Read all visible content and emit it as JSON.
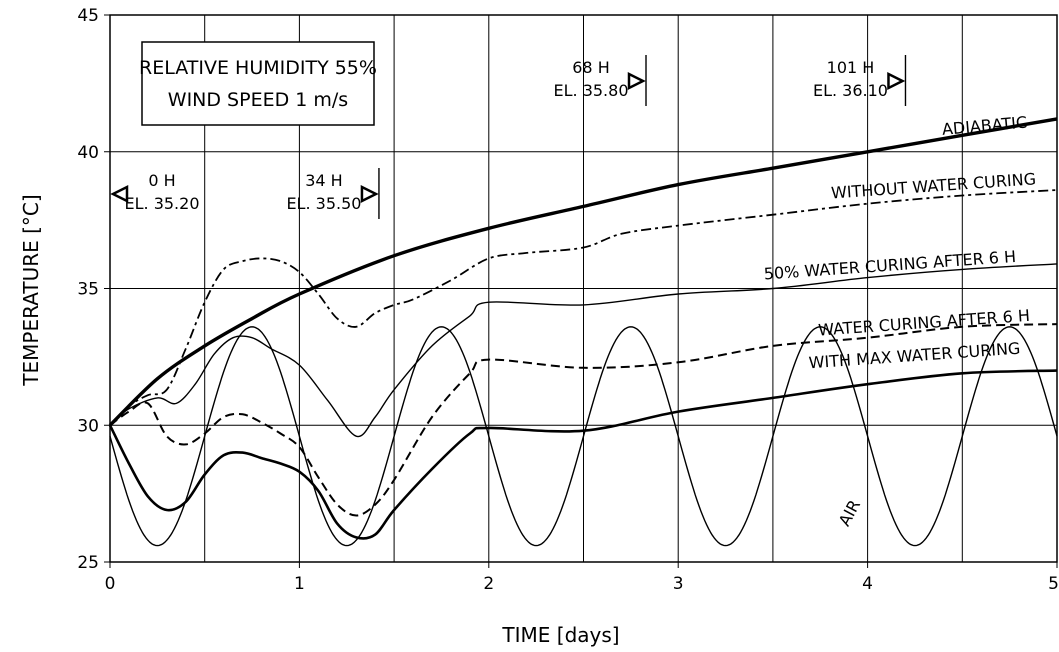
{
  "chart_data": {
    "type": "line",
    "xlabel": "TIME [days]",
    "ylabel": "TEMPERATURE [°C]",
    "xlim": [
      0,
      5
    ],
    "ylim": [
      25,
      45
    ],
    "x_ticks": [
      "0",
      "1",
      "2",
      "3",
      "4",
      "5"
    ],
    "y_ticks": [
      "25",
      "30",
      "35",
      "40",
      "45"
    ],
    "grid": true,
    "info_box": [
      "RELATIVE HUMIDITY 55%",
      "WIND SPEED 1 m/s"
    ],
    "series": [
      {
        "name": "ADIABATIC",
        "style": "thick-solid",
        "x": [
          0,
          0.25,
          0.5,
          0.75,
          1,
          1.5,
          2,
          2.5,
          3,
          3.5,
          4,
          4.5,
          5
        ],
        "y": [
          30,
          31.7,
          32.9,
          33.9,
          34.8,
          36.2,
          37.2,
          38.0,
          38.8,
          39.4,
          40.0,
          40.6,
          41.2
        ]
      },
      {
        "name": "WITHOUT WATER CURING",
        "style": "dash-dot",
        "x": [
          0,
          0.1,
          0.2,
          0.3,
          0.4,
          0.5,
          0.6,
          0.7,
          0.8,
          0.9,
          1.0,
          1.1,
          1.2,
          1.3,
          1.4,
          1.5,
          1.6,
          1.8,
          2.0,
          2.2,
          2.5,
          2.7,
          3.0,
          3.5,
          4.0,
          4.5,
          5.0
        ],
        "y": [
          30,
          30.7,
          31.1,
          31.3,
          32.8,
          34.5,
          35.7,
          36.0,
          36.1,
          36.0,
          35.6,
          34.8,
          33.9,
          33.6,
          34.1,
          34.4,
          34.6,
          35.3,
          36.1,
          36.3,
          36.5,
          37.0,
          37.3,
          37.7,
          38.1,
          38.4,
          38.6
        ]
      },
      {
        "name": "50% WATER CURING AFTER 6 H",
        "style": "thin-solid",
        "x": [
          0,
          0.1,
          0.25,
          0.35,
          0.45,
          0.55,
          0.65,
          0.75,
          0.85,
          1.0,
          1.15,
          1.3,
          1.4,
          1.5,
          1.7,
          1.9,
          2.0,
          2.5,
          3.0,
          3.5,
          4.0,
          4.5,
          5.0
        ],
        "y": [
          30,
          30.6,
          31.0,
          30.8,
          31.5,
          32.6,
          33.2,
          33.2,
          32.8,
          32.2,
          30.9,
          29.6,
          30.3,
          31.3,
          32.9,
          34.0,
          34.5,
          34.4,
          34.8,
          35.0,
          35.4,
          35.7,
          35.9
        ]
      },
      {
        "name": "WATER CURING AFTER 6 H",
        "style": "dashed",
        "x": [
          0,
          0.1,
          0.2,
          0.3,
          0.4,
          0.5,
          0.6,
          0.7,
          0.8,
          0.9,
          1.0,
          1.1,
          1.2,
          1.3,
          1.4,
          1.5,
          1.7,
          1.9,
          2.0,
          2.5,
          3.0,
          3.5,
          4.0,
          4.5,
          5.0
        ],
        "y": [
          30,
          30.5,
          30.8,
          29.6,
          29.3,
          29.7,
          30.3,
          30.4,
          30.1,
          29.7,
          29.2,
          28.1,
          27.1,
          26.7,
          27.1,
          28.0,
          30.3,
          31.9,
          32.4,
          32.1,
          32.3,
          32.9,
          33.2,
          33.6,
          33.7
        ]
      },
      {
        "name": "WITH MAX WATER CURING",
        "style": "medium-solid",
        "x": [
          0,
          0.1,
          0.2,
          0.3,
          0.4,
          0.5,
          0.6,
          0.7,
          0.8,
          0.9,
          1.0,
          1.1,
          1.2,
          1.3,
          1.4,
          1.5,
          1.7,
          1.9,
          2.0,
          2.5,
          3.0,
          3.5,
          4.0,
          4.5,
          5.0
        ],
        "y": [
          30,
          28.6,
          27.4,
          26.9,
          27.2,
          28.2,
          28.9,
          29.0,
          28.8,
          28.6,
          28.3,
          27.6,
          26.4,
          25.9,
          26.0,
          26.9,
          28.4,
          29.7,
          29.9,
          29.8,
          30.5,
          31.0,
          31.5,
          31.9,
          32.0
        ]
      },
      {
        "name": "AIR",
        "style": "thin-solid-sine",
        "x": [
          0,
          0.25,
          0.75,
          1.25,
          1.75,
          2.25,
          2.75,
          3.25,
          3.75,
          4.25,
          4.75,
          5.0
        ],
        "y": [
          30,
          25.6,
          33.6,
          25.6,
          33.6,
          25.6,
          33.6,
          25.6,
          33.6,
          25.6,
          33.6,
          29.6
        ],
        "period_days": 1,
        "mean": 29.6,
        "amplitude": 4.0
      }
    ],
    "series_labels": [
      {
        "text": "ADIABATIC",
        "x": 4.62,
        "y": 40.75,
        "angle": -5
      },
      {
        "text": "WITHOUT WATER CURING",
        "x": 4.35,
        "y": 38.55,
        "angle": -4
      },
      {
        "text": "50% WATER CURING AFTER 6 H",
        "x": 4.12,
        "y": 35.65,
        "angle": -4
      },
      {
        "text": "WATER CURING AFTER 6 H",
        "x": 4.3,
        "y": 33.55,
        "angle": -4
      },
      {
        "text": "WITH MAX WATER CURING",
        "x": 4.25,
        "y": 32.35,
        "angle": -4
      },
      {
        "text": "AIR",
        "x": 3.93,
        "y": 26.7,
        "angle": -62
      }
    ],
    "lift_annotations": [
      {
        "time_label": "0 H",
        "elevation_label": "EL. 35.20",
        "x": 0.0,
        "marker": "left"
      },
      {
        "time_label": "34 H",
        "elevation_label": "EL. 35.50",
        "x": 1.42,
        "marker": "right"
      },
      {
        "time_label": "68 H",
        "elevation_label": "EL. 35.80",
        "x": 2.83,
        "marker": "right"
      },
      {
        "time_label": "101 H",
        "elevation_label": "EL. 36.10",
        "x": 4.2,
        "marker": "right"
      }
    ]
  }
}
